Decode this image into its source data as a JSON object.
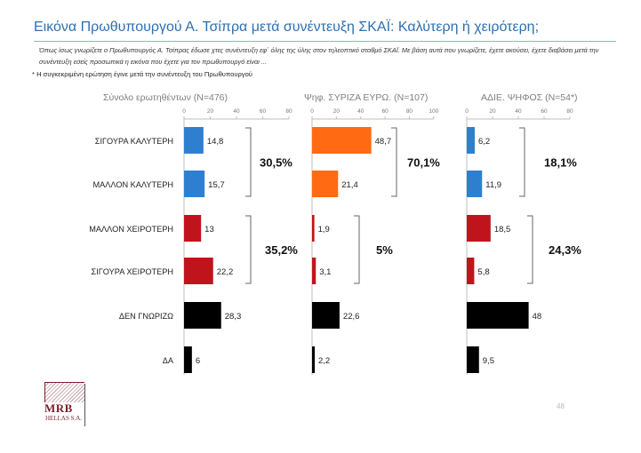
{
  "header": {
    "title": "Εικόνα Πρωθυπουργού Α. Τσίπρα μετά συνέντευξη ΣΚΑΪ: Καλύτερη ή χειρότερη;",
    "description": "Όπως ίσως γνωρίζετε ο Πρωθυπουργός Α. Τσίπρας έδωσε χτες συνέντευξη εφ΄ όλης της ύλης στον τηλεοπτικό σταθμό ΣΚΑΪ. Με βάση αυτά που γνωρίζετε, έχετε ακούσει, έχετε διαβάσει μετά την συνέντευξη εσείς προσωπικά η εικόνα που έχετε για τον πρωθυπουργό είναι ...",
    "note": "* Η συγκεκριμένη ερώτηση έγινε μετά την συνέντευξη του Πρωθυπουργού"
  },
  "footer": {
    "logo_name": "MRB",
    "logo_sub": "HELLAS S.A.",
    "page_number": "48"
  },
  "colors": {
    "blue": "#2f7fd0",
    "orange": "#ff6a12",
    "red": "#c0141c",
    "black": "#000000",
    "axis": "#bfbfbf",
    "tick_text": "#777777",
    "panel_title": "#7f7f7f"
  },
  "chart_data": {
    "type": "bar",
    "orientation": "horizontal",
    "categories": [
      "ΣΙΓΟΥΡΑ ΚΑΛΥΤΕΡΗ",
      "ΜΑΛΛΟΝ ΚΑΛΥΤΕΡΗ",
      "ΜΑΛΛΟΝ ΧΕΙΡΟΤΕΡΗ",
      "ΣΙΓΟΥΡΑ ΧΕΙΡΟΤΕΡΗ",
      "ΔΕΝ ΓΝΩΡΙΖΩ",
      "ΔΑ"
    ],
    "category_colors": [
      "blue",
      "blue",
      "red",
      "red",
      "black",
      "black"
    ],
    "panels": [
      {
        "title": "Σύνολο ερωτηθέντων (N=476)",
        "xlim": [
          0,
          80
        ],
        "ticks": [
          0,
          20,
          40,
          60,
          80
        ],
        "values": [
          14.8,
          15.7,
          13,
          22.2,
          28.3,
          6
        ],
        "labels": [
          "14,8",
          "15,7",
          "13",
          "22,2",
          "28,3",
          "6"
        ],
        "groups": [
          {
            "label": "30,5%",
            "rows": [
              0,
              1
            ]
          },
          {
            "label": "35,2%",
            "rows": [
              2,
              3
            ]
          }
        ]
      },
      {
        "title": "Ψηφ. ΣΥΡΙΖΑ ΕΥΡΩ. (N=107)",
        "xlim": [
          0,
          100
        ],
        "ticks": [
          0,
          20,
          40,
          60,
          80,
          100
        ],
        "positive_color": "orange",
        "values": [
          48.7,
          21.4,
          1.9,
          3.1,
          22.6,
          2.2
        ],
        "labels": [
          "48,7",
          "21,4",
          "1,9",
          "3,1",
          "22,6",
          "2,2"
        ],
        "groups": [
          {
            "label": "70,1%",
            "rows": [
              0,
              1
            ]
          },
          {
            "label": "5%",
            "rows": [
              2,
              3
            ]
          }
        ]
      },
      {
        "title": "ΑΔΙΕ. ΨΗΦΟΣ (N=54*)",
        "xlim": [
          0,
          80
        ],
        "ticks": [
          0,
          20,
          40,
          60,
          80
        ],
        "values": [
          6.2,
          11.9,
          18.5,
          5.8,
          48,
          9.5
        ],
        "labels": [
          "6,2",
          "11,9",
          "18,5",
          "5,8",
          "48",
          "9,5"
        ],
        "groups": [
          {
            "label": "18,1%",
            "rows": [
              0,
              1
            ]
          },
          {
            "label": "24,3%",
            "rows": [
              2,
              3
            ]
          }
        ]
      }
    ]
  }
}
